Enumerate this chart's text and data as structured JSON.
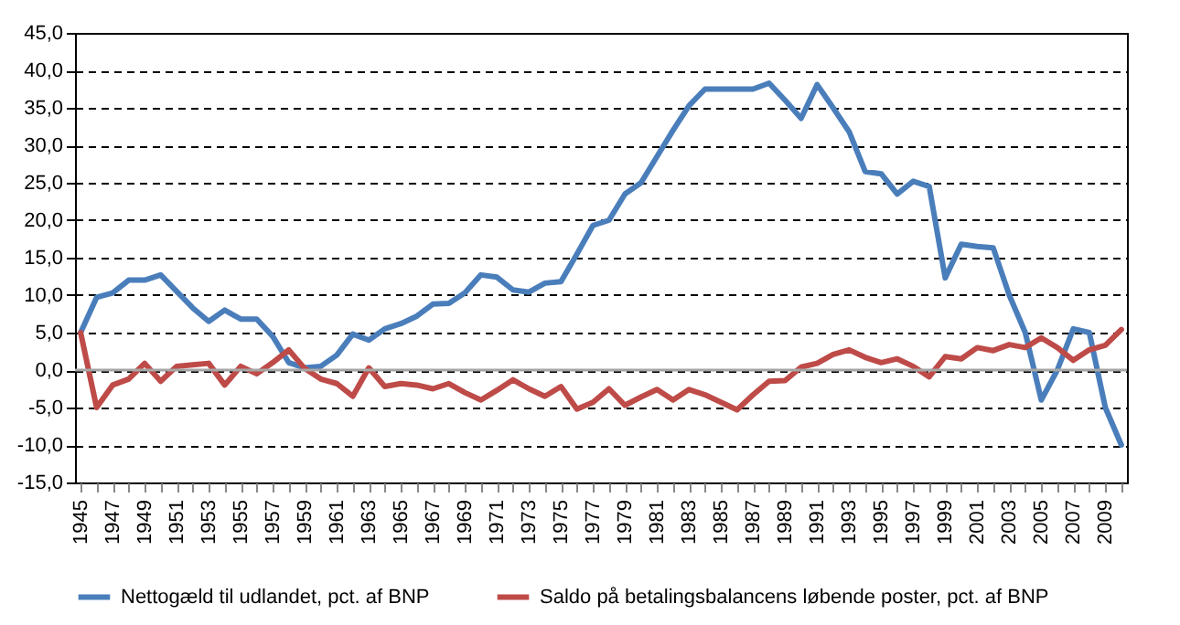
{
  "chart_data": {
    "type": "line",
    "categories": [
      "1945",
      null,
      "1947",
      null,
      "1949",
      null,
      "1951",
      null,
      "1953",
      null,
      "1955",
      null,
      "1957",
      null,
      "1959",
      null,
      "1961",
      null,
      "1963",
      null,
      "1965",
      null,
      "1967",
      null,
      "1969",
      null,
      "1971",
      null,
      "1973",
      null,
      "1975",
      null,
      "1977",
      null,
      "1979",
      null,
      "1981",
      null,
      "1983",
      null,
      "1985",
      null,
      "1987",
      null,
      "1989",
      null,
      "1991",
      null,
      "1993",
      null,
      "1995",
      null,
      "1997",
      null,
      "1999",
      null,
      "2001",
      null,
      "2003",
      null,
      "2005",
      null,
      "2007",
      null,
      "2009",
      null
    ],
    "series": [
      {
        "name": "Nettogæld til udlandet, pct. af BNP",
        "color": "#4a7ebb",
        "values": [
          5,
          9.7,
          10.3,
          12,
          12,
          12.7,
          10.5,
          8.3,
          6.5,
          8,
          6.8,
          6.8,
          4.5,
          1,
          0.3,
          0.5,
          2,
          4.8,
          4,
          5.5,
          6.2,
          7.2,
          8.8,
          8.9,
          10.3,
          12.7,
          12.4,
          10.7,
          10.4,
          11.6,
          11.8,
          15.5,
          19.3,
          20,
          23.5,
          25,
          28.5,
          32,
          35.3,
          37.5,
          37.5,
          37.5,
          37.5,
          38.3,
          36,
          33.6,
          38.1,
          35,
          31.8,
          26.5,
          26.2,
          23.5,
          25.2,
          24.5,
          12.3,
          16.8,
          16.5,
          16.3,
          10,
          5,
          -4,
          0,
          5.5,
          5,
          -5,
          -10
        ]
      },
      {
        "name": "Saldo på betalingsbalancens løbende poster, pct. af BNP",
        "color": "#be4b48",
        "values": [
          5,
          -5,
          -2,
          -1.2,
          0.9,
          -1.5,
          0.5,
          0.7,
          0.9,
          -2,
          0.5,
          -0.5,
          1,
          2.7,
          0.2,
          -1.2,
          -1.8,
          -3.5,
          0.3,
          -2.2,
          -1.8,
          -2,
          -2.5,
          -1.8,
          -3,
          -4,
          -2.7,
          -1.3,
          -2.5,
          -3.5,
          -2.2,
          -5.2,
          -4.3,
          -2.5,
          -4.7,
          -3.6,
          -2.6,
          -4,
          -2.6,
          -3.3,
          -4.3,
          -5.3,
          -3.3,
          -1.5,
          -1.4,
          0.4,
          0.9,
          2.1,
          2.7,
          1.7,
          1,
          1.5,
          0.5,
          -0.9,
          1.8,
          1.5,
          3,
          2.6,
          3.4,
          3,
          4.3,
          3,
          1.3,
          2.7,
          3.3,
          5.4
        ]
      }
    ],
    "ylim": [
      -15,
      45
    ],
    "yticks": [
      {
        "value": -15,
        "label": "-15,0"
      },
      {
        "value": -10,
        "label": "-10,0"
      },
      {
        "value": -5,
        "label": "-5,0"
      },
      {
        "value": 0,
        "label": "0,0"
      },
      {
        "value": 5,
        "label": "5,0"
      },
      {
        "value": 10,
        "label": "10,0"
      },
      {
        "value": 15,
        "label": "15,0"
      },
      {
        "value": 20,
        "label": "20,0"
      },
      {
        "value": 25,
        "label": "25,0"
      },
      {
        "value": 30,
        "label": "30,0"
      },
      {
        "value": 35,
        "label": "35,0"
      },
      {
        "value": 40,
        "label": "40,0"
      },
      {
        "value": 45,
        "label": "45,0"
      }
    ],
    "grid": "y",
    "line_style": "solid",
    "legend": "bottom",
    "ref_lines": [
      {
        "axis": "y",
        "value": 0,
        "color": "#a6a6a6"
      }
    ]
  }
}
